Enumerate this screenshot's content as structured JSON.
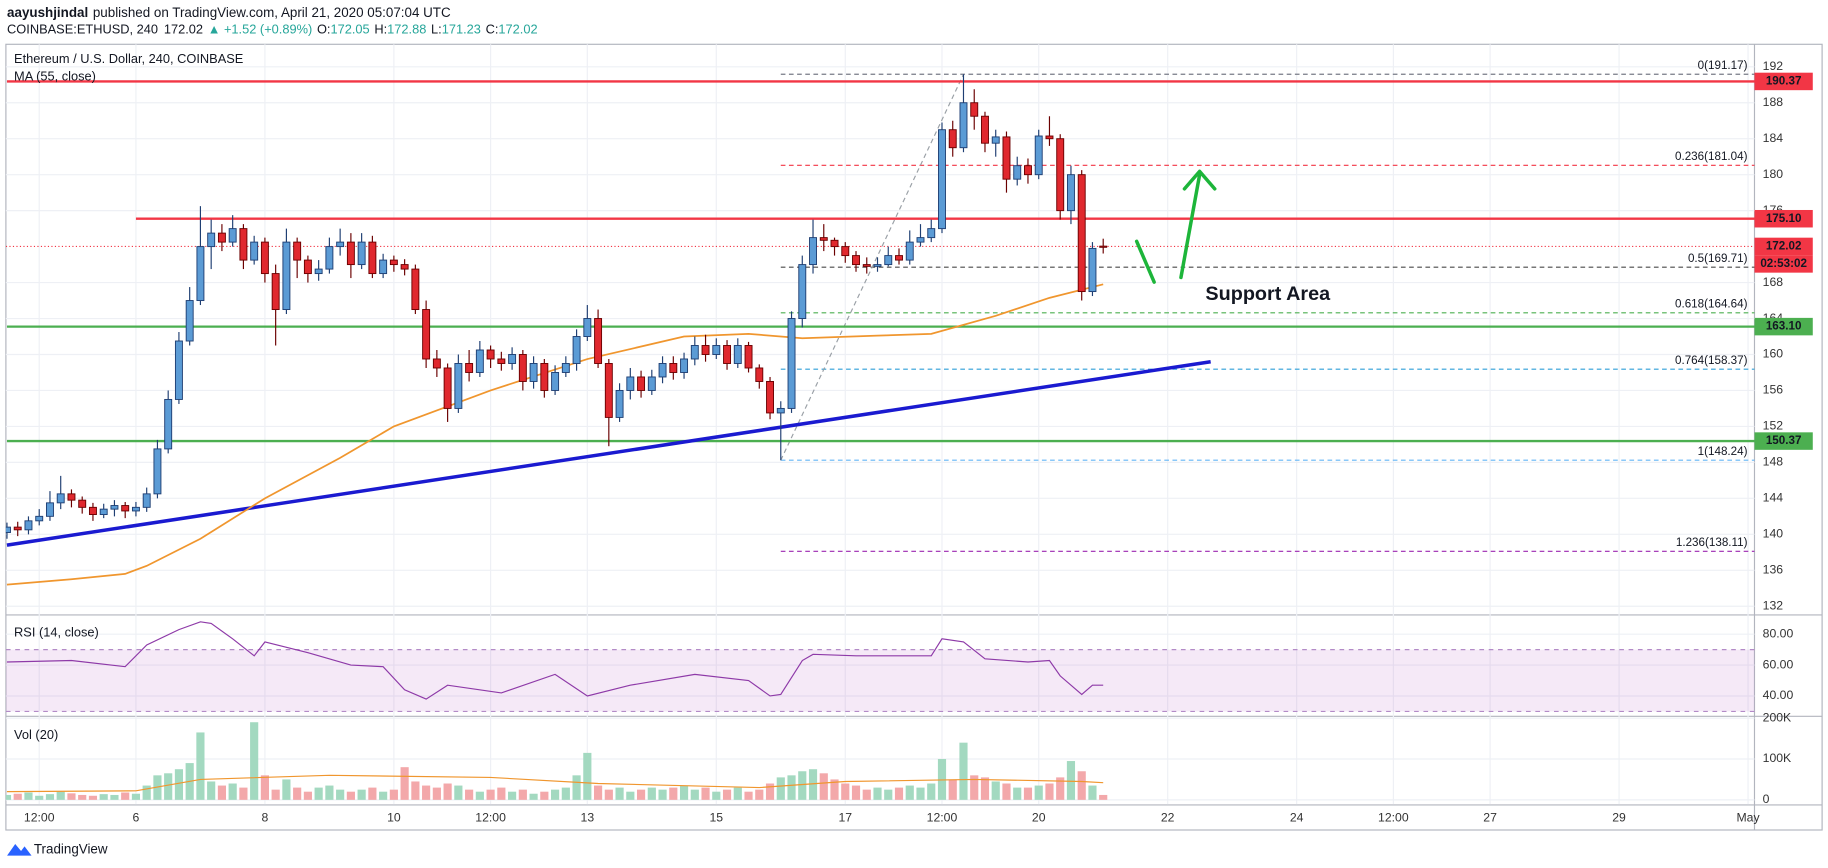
{
  "header": {
    "author": "aayushjindal",
    "published": "published on TradingView.com, April 21, 2020 05:07:04 UTC",
    "symbol": "COINBASE:ETHUSD, 240",
    "last": "172.02",
    "change": "▲ +1.52 (+0.89%)",
    "ohlc": [
      {
        "k": "O:",
        "v": "172.05"
      },
      {
        "k": "H:",
        "v": "172.88"
      },
      {
        "k": "L:",
        "v": "171.23"
      },
      {
        "k": "C:",
        "v": "172.02"
      }
    ]
  },
  "footer": "TradingView",
  "x_axis": {
    "xlim": [
      -0.1,
      162.6
    ],
    "xticks": [
      {
        "value": 3,
        "label": "12:00"
      },
      {
        "value": 12,
        "label": "6"
      },
      {
        "value": 24,
        "label": "8"
      },
      {
        "value": 36,
        "label": "10"
      },
      {
        "value": 45,
        "label": "12:00"
      },
      {
        "value": 54,
        "label": "13"
      },
      {
        "value": 66,
        "label": "15"
      },
      {
        "value": 78,
        "label": "17"
      },
      {
        "value": 87,
        "label": "12:00"
      },
      {
        "value": 96,
        "label": "20"
      },
      {
        "value": 108,
        "label": "22"
      },
      {
        "value": 120,
        "label": "24"
      },
      {
        "value": 129,
        "label": "12:00"
      },
      {
        "value": 138,
        "label": "27"
      },
      {
        "value": 150,
        "label": "29"
      },
      {
        "value": 162,
        "label": "May"
      }
    ]
  },
  "chart_data": [
    {
      "type": "candlestick",
      "title": "Ethereum / U.S. Dollar, 240, COINBASE",
      "up_color": "#5b9bd5",
      "up_border": "#1f3f73",
      "down_color": "#e0282e",
      "down_border": "#6b0000",
      "open": [
        140.2,
        140.8,
        140.5,
        141.5,
        142.0,
        143.5,
        144.5,
        143.8,
        143.0,
        142.2,
        142.8,
        143.2,
        142.6,
        143.0,
        144.5,
        149.5,
        155.0,
        161.5,
        166.0,
        172.0,
        173.5,
        172.5,
        174.0,
        170.5,
        172.5,
        169.0,
        165.0,
        172.5,
        170.5,
        169.0,
        169.5,
        172.0,
        172.5,
        170.0,
        172.5,
        169.0,
        170.5,
        170.0,
        169.5,
        165.0,
        159.5,
        158.5,
        154.0,
        159.0,
        158.0,
        160.5,
        159.5,
        159.0,
        160.0,
        157.0,
        159.0,
        156.0,
        158.0,
        159.0,
        162.0,
        164.0,
        159.0,
        153.0,
        156.0,
        157.5,
        156.0,
        157.5,
        159.0,
        158.0,
        159.5,
        161.0,
        160.0,
        161.0,
        159.0,
        161.0,
        158.5,
        157.0,
        153.5,
        154.0,
        164.0,
        170.0,
        173.0,
        172.7,
        172.0,
        171.0,
        170.0,
        169.8,
        170.0,
        171.0,
        170.5,
        172.5,
        173.0,
        174.0,
        185.0,
        183.0,
        188.0,
        186.5,
        183.5,
        184.2,
        179.5,
        181.0,
        180.0,
        184.3,
        184.0,
        176.0,
        180.0,
        167.0,
        172.05
      ],
      "high": [
        141.3,
        141.4,
        142.0,
        142.8,
        144.8,
        146.5,
        145.0,
        144.2,
        143.5,
        143.4,
        143.8,
        143.6,
        143.6,
        145.2,
        150.5,
        156.0,
        162.5,
        167.5,
        176.5,
        175.0,
        174.5,
        175.5,
        174.5,
        173.2,
        173.0,
        170.0,
        174.0,
        173.0,
        171.0,
        170.5,
        173.0,
        174.0,
        173.5,
        173.5,
        173.2,
        171.2,
        171.0,
        170.6,
        170.0,
        166.0,
        160.5,
        159.0,
        160.0,
        160.5,
        161.5,
        161.0,
        160.3,
        160.8,
        160.5,
        159.8,
        159.5,
        158.8,
        159.8,
        162.8,
        165.5,
        165.0,
        159.5,
        156.8,
        158.5,
        158.2,
        158.3,
        159.8,
        159.8,
        160.2,
        162.0,
        162.2,
        161.8,
        161.6,
        161.8,
        161.4,
        158.9,
        157.5,
        154.8,
        164.8,
        171.0,
        175.0,
        174.5,
        173.0,
        172.5,
        171.5,
        170.8,
        170.8,
        172.0,
        171.8,
        173.8,
        174.5,
        175.0,
        185.8,
        186.0,
        191.17,
        189.5,
        187.0,
        185.0,
        184.8,
        182.0,
        181.8,
        185.0,
        186.5,
        184.5,
        181.0,
        180.5,
        172.5,
        172.88
      ],
      "low": [
        139.5,
        139.8,
        140.0,
        141.0,
        141.5,
        142.8,
        143.0,
        142.3,
        141.5,
        141.8,
        142.0,
        141.8,
        142.0,
        142.5,
        144.0,
        149.0,
        154.5,
        161.0,
        165.5,
        169.5,
        171.5,
        172.0,
        169.5,
        170.0,
        168.0,
        161.0,
        164.5,
        168.5,
        168.0,
        168.2,
        169.0,
        171.0,
        168.5,
        169.5,
        168.5,
        168.5,
        169.2,
        168.8,
        164.5,
        158.5,
        157.5,
        152.5,
        153.5,
        157.0,
        157.5,
        158.5,
        158.2,
        158.3,
        156.0,
        156.2,
        155.2,
        155.5,
        157.5,
        158.2,
        161.5,
        158.5,
        149.8,
        152.5,
        155.0,
        155.2,
        155.5,
        156.8,
        157.2,
        157.3,
        158.8,
        159.2,
        159.5,
        158.3,
        158.5,
        158.0,
        156.2,
        152.8,
        148.24,
        153.5,
        163.0,
        169.0,
        171.5,
        171.0,
        170.2,
        169.2,
        169.0,
        169.2,
        169.8,
        170.0,
        170.0,
        172.0,
        172.5,
        173.5,
        182.0,
        182.5,
        185.0,
        182.5,
        182.0,
        178.0,
        178.8,
        179.0,
        179.5,
        183.2,
        175.0,
        174.5,
        166.0,
        166.5,
        171.23
      ],
      "close": [
        140.8,
        140.5,
        141.5,
        142.0,
        143.5,
        144.5,
        143.8,
        143.0,
        142.2,
        142.8,
        143.2,
        142.6,
        143.0,
        144.5,
        149.5,
        155.0,
        161.5,
        166.0,
        172.0,
        173.5,
        172.5,
        174.0,
        170.5,
        172.5,
        169.0,
        165.0,
        172.5,
        170.5,
        169.0,
        169.5,
        172.0,
        172.5,
        170.0,
        172.5,
        169.0,
        170.5,
        170.0,
        169.5,
        165.0,
        159.5,
        158.5,
        154.0,
        159.0,
        158.0,
        160.5,
        159.5,
        159.0,
        160.0,
        157.0,
        159.0,
        156.0,
        158.0,
        159.0,
        162.0,
        164.0,
        159.0,
        153.0,
        156.0,
        157.5,
        156.0,
        157.5,
        159.0,
        158.0,
        159.5,
        161.0,
        160.0,
        161.0,
        159.0,
        161.0,
        158.5,
        157.0,
        153.5,
        154.0,
        164.0,
        170.0,
        173.0,
        172.7,
        172.0,
        171.0,
        170.0,
        169.8,
        170.0,
        171.0,
        170.5,
        172.5,
        173.0,
        174.0,
        185.0,
        183.0,
        188.0,
        186.5,
        183.5,
        184.2,
        179.5,
        181.0,
        180.0,
        184.3,
        184.0,
        176.0,
        180.0,
        167.0,
        171.8,
        172.02
      ],
      "ylim": [
        131.1,
        194.5
      ],
      "yticks": [
        132,
        136,
        140,
        144,
        148,
        152,
        156,
        160,
        164,
        168,
        176,
        180,
        184,
        188,
        192
      ],
      "grid": true,
      "ma": {
        "name": "MA (55, close)",
        "color": "#f0962e",
        "x": [
          0,
          6,
          11,
          13,
          18,
          24,
          31,
          36,
          45,
          54,
          63,
          69,
          74,
          81,
          86,
          92,
          97,
          102
        ],
        "values": [
          134.4,
          135.0,
          135.6,
          136.5,
          139.5,
          144.0,
          148.5,
          152.0,
          156.0,
          159.5,
          162.0,
          162.3,
          161.8,
          162.1,
          162.3,
          164.3,
          166.3,
          167.8
        ]
      },
      "trendline": {
        "color": "#1a1ad0",
        "x": [
          0,
          112
        ],
        "values": [
          138.8,
          159.2
        ]
      },
      "fib_trend": {
        "color": "#9aa0a6",
        "x": [
          72,
          89
        ],
        "values": [
          148.24,
          191.17
        ]
      },
      "fib": {
        "x_from": 72,
        "levels": [
          {
            "value": 191.17,
            "label": "0(191.17)",
            "color": "#787b86"
          },
          {
            "value": 181.04,
            "label": "0.236(181.04)",
            "color": "#f23645"
          },
          {
            "value": 169.71,
            "label": "0.5(169.71)",
            "color": "#4a4a4a"
          },
          {
            "value": 164.64,
            "label": "0.618(164.64)",
            "color": "#4caf50"
          },
          {
            "value": 158.37,
            "label": "0.764(158.37)",
            "color": "#2e9fd8"
          },
          {
            "value": 148.24,
            "label": "1(148.24)",
            "color": "#64b5f6"
          },
          {
            "value": 138.11,
            "label": "1.236(138.11)",
            "color": "#9c27b0"
          }
        ]
      },
      "levels": [
        {
          "value": 190.37,
          "label": "190.37",
          "color": "#f23645",
          "x_from": 0
        },
        {
          "value": 175.1,
          "label": "175.10",
          "color": "#f23645",
          "x_from": 12
        },
        {
          "value": 163.1,
          "label": "163.10",
          "color": "#4caf50",
          "x_from": 0
        },
        {
          "value": 150.37,
          "label": "150.37",
          "color": "#4caf50",
          "x_from": 0
        }
      ],
      "last": {
        "value": 172.02,
        "label": "172.02",
        "countdown": "02:53:02",
        "color": "#f23645"
      },
      "annotation": "Support Area"
    },
    {
      "type": "line",
      "title": "RSI (14, close)",
      "ylim": [
        27.2,
        92.1
      ],
      "yticks": [
        {
          "value": 80,
          "label": "80.00"
        },
        {
          "value": 60,
          "label": "60.00"
        },
        {
          "value": 40,
          "label": "40.00"
        }
      ],
      "grid": true,
      "bands": [
        30,
        70
      ],
      "band_color": "#9c27b0",
      "series": [
        {
          "name": "RSI",
          "color": "#8e3aa8",
          "x": [
            0,
            6,
            11,
            13,
            16,
            18,
            19,
            21,
            23,
            24,
            28,
            32,
            35,
            37,
            39,
            41,
            46,
            51,
            54,
            58,
            64,
            69,
            71,
            72,
            74,
            75,
            79,
            86,
            87,
            89,
            91,
            95,
            97,
            98,
            100,
            101,
            102
          ],
          "values": [
            62,
            63,
            59,
            73,
            83,
            88,
            87,
            77,
            66,
            75,
            68,
            60,
            59,
            44,
            38,
            47,
            42,
            54,
            40,
            47,
            54,
            50,
            40,
            41,
            63,
            67,
            66,
            66,
            77,
            75,
            64,
            62,
            63,
            53,
            41,
            47,
            47
          ]
        }
      ]
    },
    {
      "type": "bar",
      "title": "Vol (20)",
      "up_color": "#a3d9c0",
      "down_color": "#f3a8aa",
      "values": [
        12000,
        15000,
        18000,
        10000,
        14000,
        20000,
        16000,
        12000,
        10000,
        14000,
        12000,
        18000,
        15000,
        35000,
        60000,
        65000,
        75000,
        90000,
        165000,
        45000,
        35000,
        40000,
        30000,
        190000,
        60000,
        25000,
        50000,
        30000,
        20000,
        30000,
        35000,
        25000,
        20000,
        25000,
        30000,
        20000,
        25000,
        80000,
        45000,
        35000,
        30000,
        40000,
        35000,
        25000,
        20000,
        25000,
        30000,
        20000,
        25000,
        15000,
        20000,
        25000,
        30000,
        60000,
        115000,
        35000,
        25000,
        30000,
        20000,
        25000,
        30000,
        25000,
        30000,
        35000,
        25000,
        30000,
        20000,
        25000,
        30000,
        20000,
        25000,
        40000,
        55000,
        60000,
        70000,
        75000,
        65000,
        50000,
        40000,
        35000,
        25000,
        30000,
        25000,
        30000,
        35000,
        30000,
        40000,
        100000,
        50000,
        140000,
        60000,
        55000,
        45000,
        40000,
        30000,
        30000,
        35000,
        40000,
        55000,
        95000,
        70000,
        35000,
        12000
      ],
      "ylim": [
        -11000,
        203000
      ],
      "yticks": [
        0,
        {
          "value": 100000,
          "label": "100K"
        },
        {
          "value": 200000,
          "label": "200K"
        }
      ],
      "grid": true,
      "ma": {
        "name": "Volume MA",
        "color": "#f0962e",
        "x": [
          0,
          12,
          18,
          30,
          45,
          55,
          70,
          78,
          90,
          100,
          102
        ],
        "values": [
          20000,
          22000,
          50000,
          60000,
          55000,
          40000,
          30000,
          45000,
          50000,
          45000,
          42000
        ]
      }
    }
  ]
}
